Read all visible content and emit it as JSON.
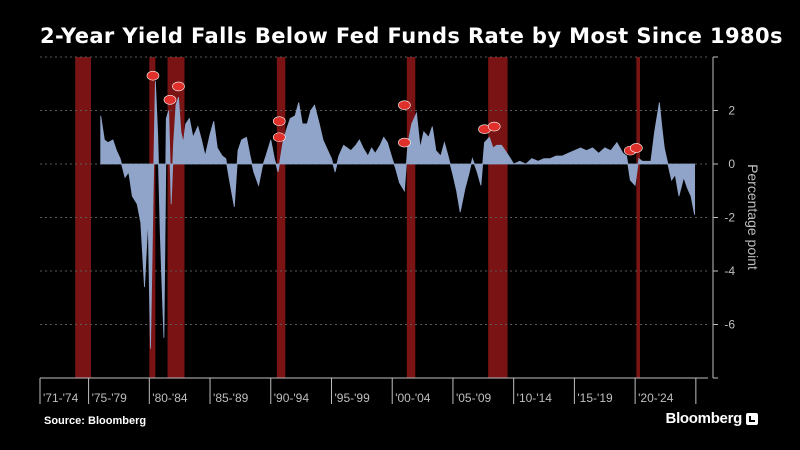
{
  "title": "2-Year Yield Falls Below Fed Funds Rate by Most Since 1980s",
  "source": "Source: Bloomberg",
  "brand": "Bloomberg",
  "colors": {
    "background": "#000000",
    "series": "#8fa4c8",
    "recession": "#7a1414",
    "marker": "#e0302b",
    "grid": "#5a5a5a",
    "text": "#bfbfbf"
  },
  "chart_data": {
    "type": "area",
    "title": "2-Year Yield Falls Below Fed Funds Rate by Most Since 1980s",
    "ylabel": "Percentage point",
    "ylim": [
      -8,
      4
    ],
    "yticks": [
      2,
      0,
      -2,
      -4,
      -6
    ],
    "xlim": [
      1971,
      2026
    ],
    "x_tick_labels": [
      "'71-'74",
      "'75-'79",
      "'80-'84",
      "'85-'89",
      "'90-'94",
      "'95-'99",
      "'00-'04",
      "'05-'09",
      "'10-'14",
      "'15-'19",
      "'20-'24"
    ],
    "grid": "horizontal-dashed",
    "legend": "none",
    "recession_bands": [
      {
        "start": 1973.9,
        "end": 1975.2
      },
      {
        "start": 1980.0,
        "end": 1980.5
      },
      {
        "start": 1981.5,
        "end": 1982.9
      },
      {
        "start": 1990.5,
        "end": 1991.2
      },
      {
        "start": 2001.2,
        "end": 2001.9
      },
      {
        "start": 2007.9,
        "end": 2009.5
      },
      {
        "start": 2020.1,
        "end": 2020.4
      }
    ],
    "rate_cut_markers": [
      {
        "x": 1980.3,
        "y": 3.3
      },
      {
        "x": 1981.7,
        "y": 2.4
      },
      {
        "x": 1982.4,
        "y": 2.9
      },
      {
        "x": 1990.7,
        "y": 1.6
      },
      {
        "x": 1990.7,
        "y": 1.0
      },
      {
        "x": 2001.0,
        "y": 2.2
      },
      {
        "x": 2001.0,
        "y": 0.8
      },
      {
        "x": 2007.6,
        "y": 1.3
      },
      {
        "x": 2008.4,
        "y": 1.4
      },
      {
        "x": 2019.6,
        "y": 0.5
      },
      {
        "x": 2020.1,
        "y": 0.6
      }
    ],
    "series": [
      {
        "x": [
          1976.0,
          1976.3,
          1976.6,
          1977.0,
          1977.3,
          1977.6,
          1978.0,
          1978.3,
          1978.6,
          1979.0,
          1979.3,
          1979.6,
          1979.9,
          1980.1,
          1980.3,
          1980.5,
          1980.7,
          1980.9,
          1981.0,
          1981.2,
          1981.4,
          1981.6,
          1981.8,
          1982.0,
          1982.2,
          1982.4,
          1982.6,
          1982.8,
          1983.0,
          1983.3,
          1983.6,
          1984.0,
          1984.3,
          1984.6,
          1985.0,
          1985.3,
          1985.6,
          1986.0,
          1986.3,
          1986.6,
          1987.0,
          1987.3,
          1987.6,
          1988.0,
          1988.3,
          1988.6,
          1989.0,
          1989.3,
          1989.6,
          1990.0,
          1990.3,
          1990.6,
          1991.0,
          1991.3,
          1991.6,
          1992.0,
          1992.3,
          1992.6,
          1993.0,
          1993.3,
          1993.6,
          1994.0,
          1994.3,
          1994.6,
          1995.0,
          1995.3,
          1995.6,
          1996.0,
          1996.3,
          1996.6,
          1997.0,
          1997.3,
          1997.6,
          1998.0,
          1998.3,
          1998.6,
          1999.0,
          1999.3,
          1999.6,
          2000.0,
          2000.3,
          2000.6,
          2001.0,
          2001.3,
          2001.6,
          2002.0,
          2002.3,
          2002.6,
          2003.0,
          2003.3,
          2003.6,
          2004.0,
          2004.3,
          2004.6,
          2005.0,
          2005.3,
          2005.6,
          2006.0,
          2006.3,
          2006.6,
          2007.0,
          2007.3,
          2007.6,
          2008.0,
          2008.3,
          2008.6,
          2009.0,
          2009.3,
          2009.6,
          2010.0,
          2010.5,
          2011.0,
          2011.5,
          2012.0,
          2012.5,
          2013.0,
          2013.5,
          2014.0,
          2014.5,
          2015.0,
          2015.5,
          2016.0,
          2016.5,
          2017.0,
          2017.5,
          2018.0,
          2018.5,
          2019.0,
          2019.3,
          2019.6,
          2020.0,
          2020.3,
          2020.6,
          2021.0,
          2021.3,
          2021.6,
          2022.0,
          2022.2,
          2022.4,
          2022.6,
          2022.8,
          2023.0,
          2023.3,
          2023.6,
          2024.0,
          2024.3,
          2024.6,
          2024.9
        ],
        "values": [
          1.8,
          0.9,
          0.8,
          0.9,
          0.5,
          0.2,
          -0.5,
          -0.3,
          -1.2,
          -1.5,
          -2.2,
          -4.6,
          -2.0,
          -6.9,
          -1.5,
          3.1,
          1.0,
          -2.5,
          -4.0,
          -6.5,
          1.7,
          2.0,
          -1.5,
          0.8,
          2.2,
          2.5,
          1.2,
          0.8,
          1.5,
          1.7,
          1.0,
          1.4,
          0.9,
          0.3,
          1.1,
          1.6,
          0.6,
          0.3,
          0.2,
          -0.6,
          -1.6,
          0.5,
          0.9,
          1.0,
          0.3,
          -0.3,
          -0.8,
          -0.1,
          0.3,
          0.9,
          0.2,
          -0.3,
          0.8,
          1.3,
          1.7,
          1.8,
          2.3,
          1.5,
          1.5,
          2.0,
          2.2,
          1.5,
          0.9,
          0.6,
          0.2,
          -0.3,
          0.3,
          0.7,
          0.6,
          0.5,
          0.7,
          0.9,
          0.6,
          0.3,
          0.6,
          0.4,
          0.7,
          1.0,
          0.8,
          0.2,
          -0.2,
          -0.7,
          -1.0,
          0.8,
          1.5,
          1.9,
          0.6,
          1.2,
          1.0,
          1.4,
          0.5,
          0.3,
          0.8,
          0.3,
          -0.4,
          -1.0,
          -1.8,
          -0.9,
          -0.4,
          0.2,
          -0.3,
          -0.8,
          0.8,
          1.0,
          0.6,
          0.7,
          0.7,
          0.5,
          0.3,
          0.0,
          0.1,
          0.0,
          0.2,
          0.1,
          0.2,
          0.2,
          0.3,
          0.3,
          0.4,
          0.5,
          0.6,
          0.5,
          0.6,
          0.4,
          0.6,
          0.5,
          0.8,
          0.4,
          0.3,
          -0.6,
          -0.8,
          0.2,
          0.1,
          0.1,
          0.1,
          1.2,
          2.3,
          1.4,
          0.6,
          0.2,
          -0.2,
          -0.6,
          -0.4,
          -1.2,
          -0.5,
          -0.9,
          -1.2,
          -1.9
        ]
      }
    ]
  }
}
